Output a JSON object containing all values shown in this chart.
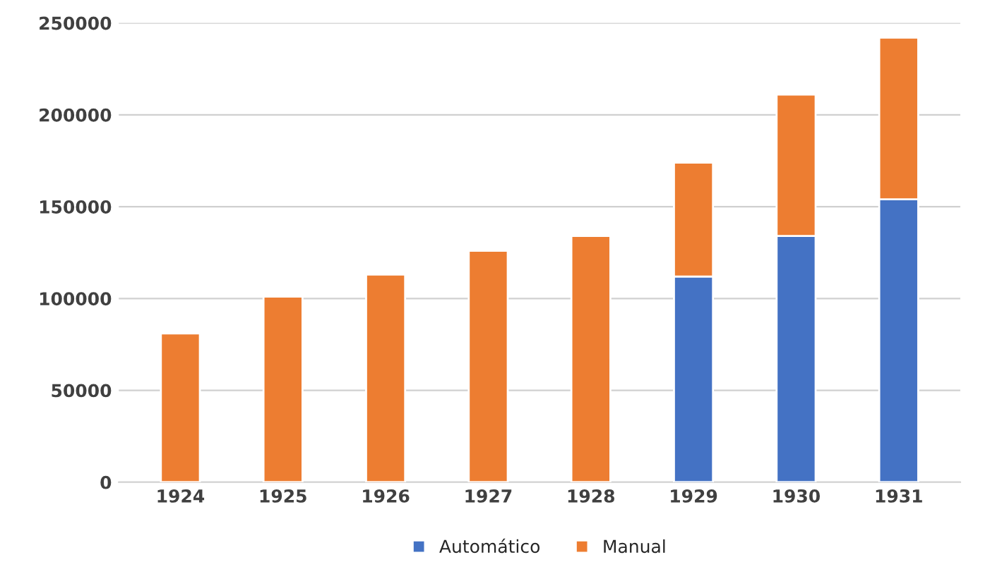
{
  "chart_data": {
    "type": "bar",
    "stacked": true,
    "categories": [
      "1924",
      "1925",
      "1926",
      "1927",
      "1928",
      "1929",
      "1930",
      "1931"
    ],
    "series": [
      {
        "name": "Automático",
        "color": "#4472c4",
        "values": [
          0,
          0,
          0,
          0,
          0,
          112000,
          134000,
          154000
        ]
      },
      {
        "name": "Manual",
        "color": "#ed7d31",
        "values": [
          81000,
          101000,
          113000,
          126000,
          134000,
          62000,
          77000,
          88000
        ]
      }
    ],
    "ylim": [
      0,
      250000
    ],
    "yticks": [
      0,
      50000,
      100000,
      150000,
      200000,
      250000
    ],
    "grid": "y",
    "legend": "bottom"
  }
}
